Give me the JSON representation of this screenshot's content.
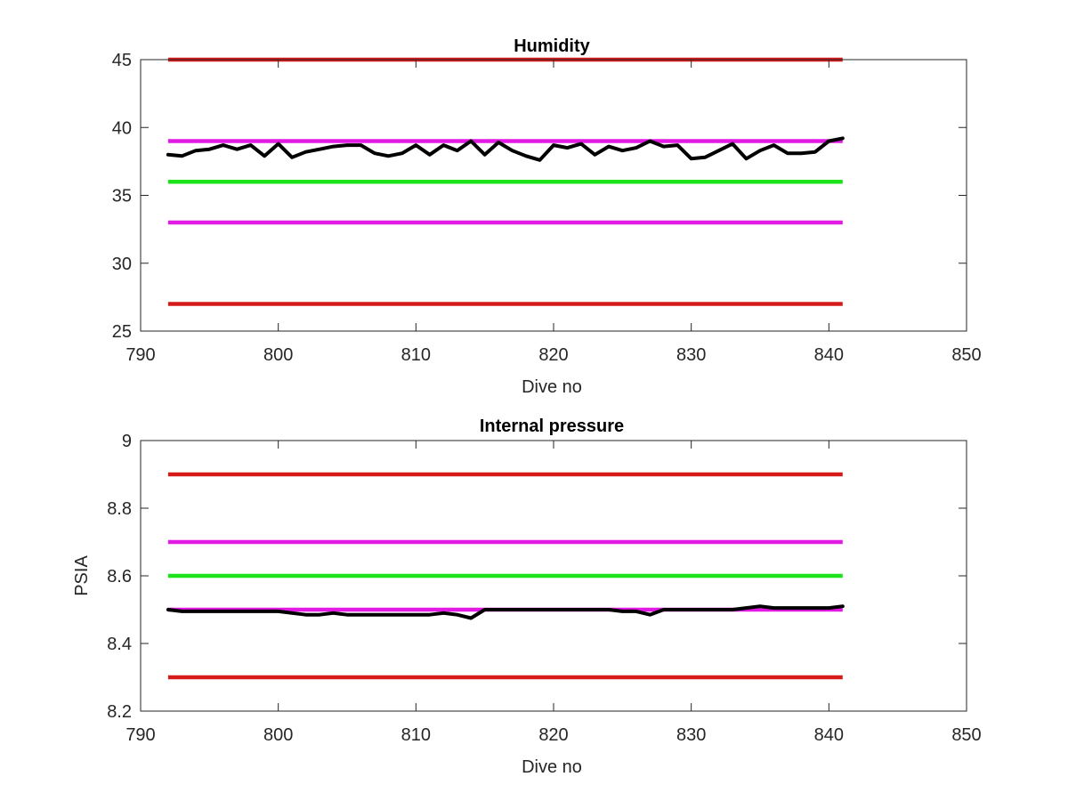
{
  "chart_data": [
    {
      "type": "line",
      "title": "Humidity",
      "xlabel": "Dive no",
      "ylabel": "",
      "xlim": [
        790,
        850
      ],
      "ylim": [
        25,
        45
      ],
      "xticks": [
        "790",
        "800",
        "810",
        "820",
        "830",
        "840",
        "850"
      ],
      "yticks": [
        "25",
        "30",
        "35",
        "40",
        "45"
      ],
      "xtick_values": [
        790,
        800,
        810,
        820,
        830,
        840,
        850
      ],
      "ytick_values": [
        25,
        30,
        35,
        40,
        45
      ],
      "grid": false,
      "limit_lines": [
        {
          "color": "#d61a1a",
          "y": 45,
          "x": [
            792,
            841
          ]
        },
        {
          "color": "#e31ae3",
          "y": 39,
          "x": [
            792,
            841
          ]
        },
        {
          "color": "#1ae31a",
          "y": 36,
          "x": [
            792,
            841
          ]
        },
        {
          "color": "#e31ae3",
          "y": 33,
          "x": [
            792,
            841
          ]
        },
        {
          "color": "#d61a1a",
          "y": 27,
          "x": [
            792,
            841
          ]
        }
      ],
      "series": [
        {
          "color": "#000000",
          "x": [
            792,
            793,
            794,
            795,
            796,
            797,
            798,
            799,
            800,
            801,
            802,
            803,
            804,
            805,
            806,
            807,
            808,
            809,
            810,
            811,
            812,
            813,
            814,
            815,
            816,
            817,
            818,
            819,
            820,
            821,
            822,
            823,
            824,
            825,
            826,
            827,
            828,
            829,
            830,
            831,
            832,
            833,
            834,
            835,
            836,
            837,
            838,
            839,
            840,
            841
          ],
          "y": [
            38.0,
            37.9,
            38.3,
            38.4,
            38.7,
            38.4,
            38.7,
            37.9,
            38.8,
            37.8,
            38.2,
            38.4,
            38.6,
            38.7,
            38.7,
            38.1,
            37.9,
            38.1,
            38.7,
            38.0,
            38.7,
            38.3,
            39.0,
            38.0,
            38.9,
            38.3,
            37.9,
            37.6,
            38.7,
            38.5,
            38.8,
            38.0,
            38.6,
            38.3,
            38.5,
            39.0,
            38.6,
            38.7,
            37.7,
            37.8,
            38.3,
            38.8,
            37.7,
            38.3,
            38.7,
            38.1,
            38.1,
            38.2,
            39.0,
            39.2
          ]
        }
      ]
    },
    {
      "type": "line",
      "title": "Internal pressure",
      "xlabel": "Dive no",
      "ylabel": "PSIA",
      "xlim": [
        790,
        850
      ],
      "ylim": [
        8.2,
        9
      ],
      "xticks": [
        "790",
        "800",
        "810",
        "820",
        "830",
        "840",
        "850"
      ],
      "yticks": [
        "8.2",
        "8.4",
        "8.6",
        "8.8",
        "9"
      ],
      "xtick_values": [
        790,
        800,
        810,
        820,
        830,
        840,
        850
      ],
      "ytick_values": [
        8.2,
        8.4,
        8.6,
        8.8,
        9
      ],
      "grid": false,
      "limit_lines": [
        {
          "color": "#d61a1a",
          "y": 8.9,
          "x": [
            792,
            841
          ]
        },
        {
          "color": "#e31ae3",
          "y": 8.7,
          "x": [
            792,
            841
          ]
        },
        {
          "color": "#1ae31a",
          "y": 8.6,
          "x": [
            792,
            841
          ]
        },
        {
          "color": "#e31ae3",
          "y": 8.5,
          "x": [
            792,
            841
          ]
        },
        {
          "color": "#d61a1a",
          "y": 8.3,
          "x": [
            792,
            841
          ]
        }
      ],
      "series": [
        {
          "color": "#000000",
          "x": [
            792,
            793,
            794,
            795,
            796,
            797,
            798,
            799,
            800,
            801,
            802,
            803,
            804,
            805,
            806,
            807,
            808,
            809,
            810,
            811,
            812,
            813,
            814,
            815,
            816,
            817,
            818,
            819,
            820,
            821,
            822,
            823,
            824,
            825,
            826,
            827,
            828,
            829,
            830,
            831,
            832,
            833,
            834,
            835,
            836,
            837,
            838,
            839,
            840,
            841
          ],
          "y": [
            8.5,
            8.495,
            8.495,
            8.495,
            8.495,
            8.495,
            8.495,
            8.495,
            8.495,
            8.49,
            8.485,
            8.485,
            8.49,
            8.485,
            8.485,
            8.485,
            8.485,
            8.485,
            8.485,
            8.485,
            8.49,
            8.485,
            8.475,
            8.5,
            8.5,
            8.5,
            8.5,
            8.5,
            8.5,
            8.5,
            8.5,
            8.5,
            8.5,
            8.495,
            8.495,
            8.485,
            8.5,
            8.5,
            8.5,
            8.5,
            8.5,
            8.5,
            8.505,
            8.51,
            8.505,
            8.505,
            8.505,
            8.505,
            8.505,
            8.51
          ]
        }
      ]
    }
  ]
}
